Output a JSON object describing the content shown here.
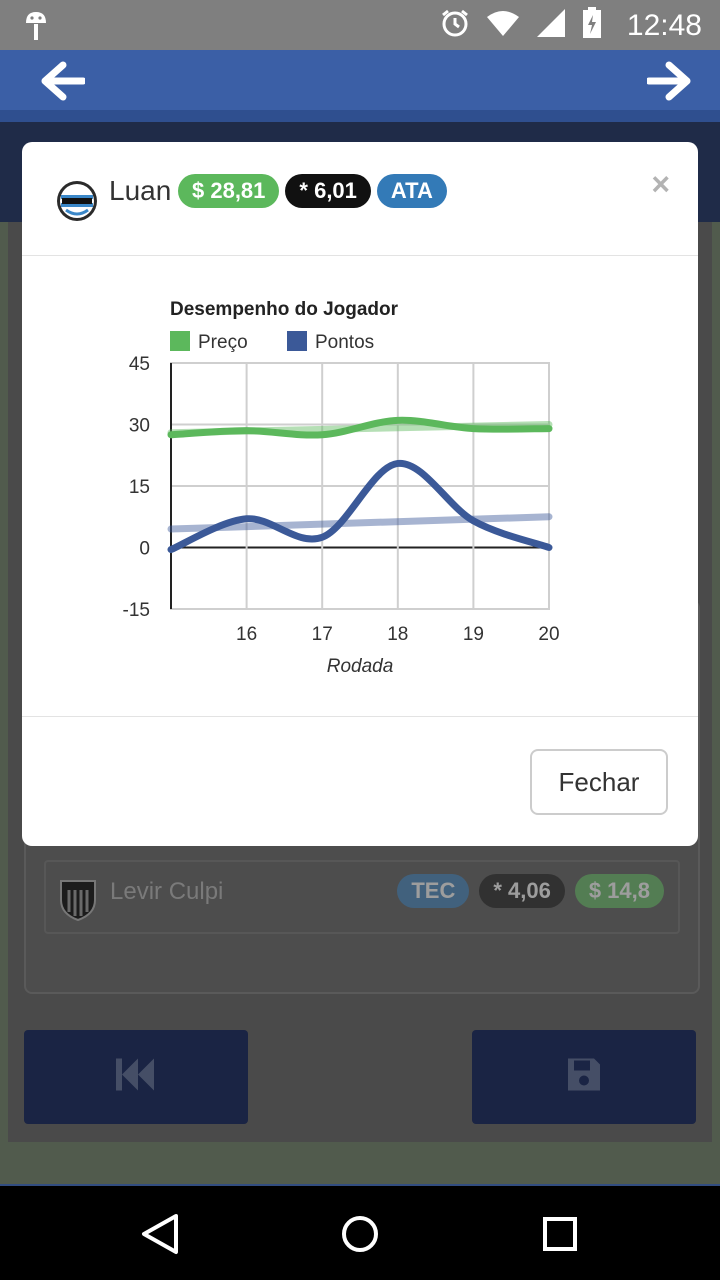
{
  "status_bar": {
    "time": "12:48"
  },
  "player": {
    "name": "Luan",
    "club": "Grêmio",
    "price": "$ 28,81",
    "score": "* 6,01",
    "position": "ATA"
  },
  "modal": {
    "close_symbol": "×",
    "footer_button": "Fechar"
  },
  "chart_data": {
    "type": "line",
    "title": "Desempenho do Jogador",
    "xlabel": "Rodada",
    "ylabel": "",
    "x_ticks": [
      "16",
      "17",
      "18",
      "19",
      "20"
    ],
    "y_ticks": [
      "45",
      "30",
      "15",
      "0",
      "-15"
    ],
    "xlim": [
      15,
      20
    ],
    "ylim": [
      -15,
      45
    ],
    "grid": true,
    "legend_position": "top-left",
    "series": [
      {
        "name": "Preço",
        "color": "#5cb85c",
        "x": [
          15,
          16,
          17,
          18,
          19,
          20
        ],
        "values": [
          27.5,
          28.5,
          27.5,
          31.0,
          29.0,
          29.0
        ]
      },
      {
        "name": "Pontos",
        "color": "#3b5998",
        "x": [
          15,
          16,
          17,
          18,
          19,
          20
        ],
        "values": [
          -0.5,
          7.0,
          2.5,
          20.5,
          6.5,
          0.0
        ]
      }
    ],
    "trendlines": [
      {
        "series": "Preço",
        "x": [
          15,
          20
        ],
        "values": [
          28.0,
          30.0
        ]
      },
      {
        "series": "Pontos",
        "x": [
          15,
          20
        ],
        "values": [
          4.5,
          7.5
        ]
      }
    ]
  },
  "background": {
    "row_name": "Levir Culpi",
    "row_position": "TEC",
    "row_score": "* 4,06",
    "row_price": "$ 14,8"
  }
}
